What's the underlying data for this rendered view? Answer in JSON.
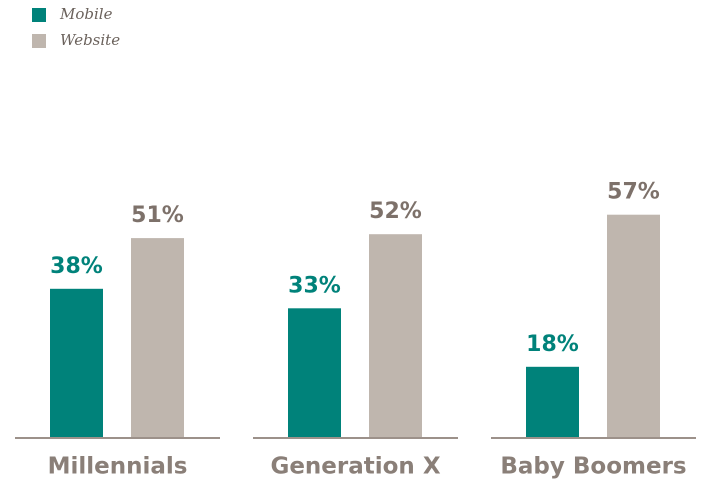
{
  "chart_data": {
    "type": "bar",
    "categories": [
      "Millennials",
      "Generation X",
      "Baby Boomers"
    ],
    "series": [
      {
        "name": "Mobile",
        "color": "#00827a",
        "values": [
          38,
          33,
          18
        ],
        "value_labels": [
          "38%",
          "33%",
          "18%"
        ]
      },
      {
        "name": "Website",
        "color": "#bfb6ae",
        "values": [
          51,
          52,
          57
        ],
        "value_labels": [
          "51%",
          "52%",
          "57%"
        ]
      }
    ],
    "legend": "top-left"
  }
}
